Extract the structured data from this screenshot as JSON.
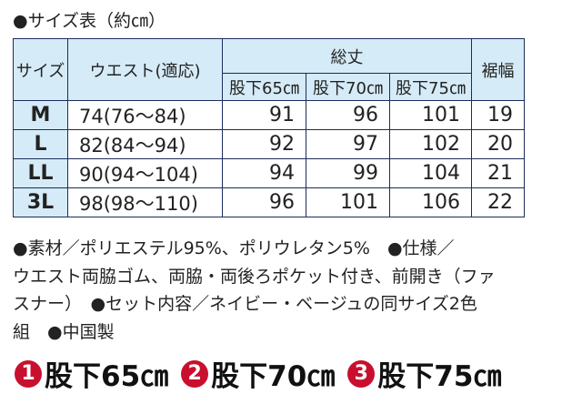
{
  "title": "●サイズ表（約㎝）",
  "table": {
    "headers": {
      "size": "サイズ",
      "waist": "ウエスト(適応)",
      "length": "総丈",
      "hem": "裾幅",
      "lengths": [
        "股下65㎝",
        "股下70㎝",
        "股下75㎝"
      ]
    },
    "rows": [
      [
        "M",
        "74(76〜84)",
        "91",
        "96",
        "101",
        "19"
      ],
      [
        "L",
        "82(84〜94)",
        "92",
        "97",
        "102",
        "20"
      ],
      [
        "LL",
        "90(94〜104)",
        "94",
        "99",
        "104",
        "21"
      ],
      [
        "3L",
        "98(98〜110)",
        "96",
        "101",
        "106",
        "22"
      ]
    ]
  },
  "notes": [
    "●素材／ポリエステル95%、ポリウレタン5%　●仕様／",
    "ウエスト両脇ゴム、両脇・両後ろポケット付き、前開き（ファ",
    "スナー）　●セット内容／ネイビー・ベージュの同サイズ2色",
    "組　●中国製"
  ],
  "options": [
    {
      "number": "1",
      "label": "股下65㎝"
    },
    {
      "number": "2",
      "label": "股下70㎝"
    },
    {
      "number": "3",
      "label": "股下75㎝"
    }
  ]
}
